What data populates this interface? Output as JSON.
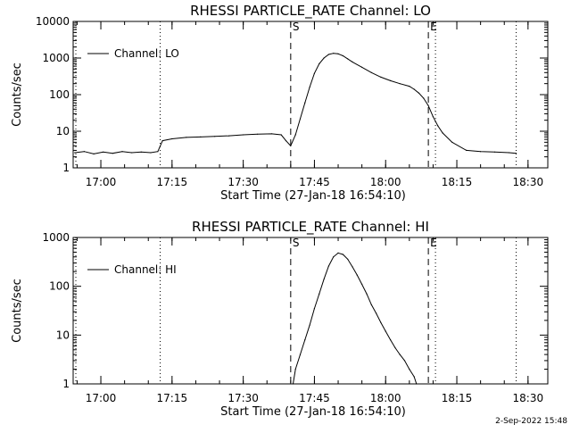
{
  "footer_date": "2-Sep-2022 15:48",
  "chart_data": [
    {
      "type": "line",
      "title": "RHESSI PARTICLE_RATE Channel: LO",
      "xlabel": "Start Time (27-Jan-18 16:54:10)",
      "ylabel": "Counts/sec",
      "y_scale": "log",
      "ylim": [
        1,
        10000
      ],
      "y_ticks": [
        1,
        10,
        100,
        1000,
        10000
      ],
      "y_tick_labels": [
        "1",
        "10",
        "100",
        "1000",
        "10000"
      ],
      "x_ticks": [
        "17:00",
        "17:15",
        "17:30",
        "17:45",
        "18:00",
        "18:15",
        "18:30"
      ],
      "xlim": [
        "16:54:10",
        "18:34:10"
      ],
      "legend": {
        "label": "Channel: LO",
        "placement": "top-left"
      },
      "start_marker": {
        "time": "17:40:00",
        "label": "S"
      },
      "end_marker": {
        "time": "18:09:00",
        "label": "E"
      },
      "dotted_lines": [
        "17:12:30",
        "18:10:30",
        "18:27:30"
      ],
      "series": [
        {
          "x": [
            "16:54:30",
            "16:56:30",
            "16:58:30",
            "17:00:30",
            "17:02:30",
            "17:04:30",
            "17:06:30",
            "17:08:30",
            "17:10:30",
            "17:12:00",
            "17:13:00",
            "17:15:00",
            "17:18:00",
            "17:21:00",
            "17:24:00",
            "17:27:00",
            "17:30:00",
            "17:33:00",
            "17:36:00",
            "17:38:00",
            "17:39:00",
            "17:40:00",
            "17:41:00",
            "17:42:00",
            "17:43:00",
            "17:44:00",
            "17:45:00",
            "17:46:00",
            "17:47:00",
            "17:48:00",
            "17:49:00",
            "17:50:00",
            "17:51:00",
            "17:52:00",
            "17:53:00",
            "17:55:00",
            "17:57:00",
            "17:59:00",
            "18:01:00",
            "18:03:00",
            "18:05:00",
            "18:06:00",
            "18:07:00",
            "18:08:00",
            "18:09:00",
            "18:10:00",
            "18:11:00",
            "18:12:00",
            "18:14:00",
            "18:17:00",
            "18:20:00",
            "18:23:00",
            "18:26:00",
            "18:27:30"
          ],
          "y": [
            2.6,
            2.8,
            2.4,
            2.7,
            2.5,
            2.8,
            2.6,
            2.7,
            2.6,
            2.8,
            5.5,
            6.2,
            6.8,
            7.0,
            7.2,
            7.5,
            8.0,
            8.3,
            8.5,
            8.0,
            5.5,
            4.0,
            8,
            22,
            60,
            160,
            380,
            700,
            1000,
            1250,
            1350,
            1300,
            1150,
            950,
            780,
            560,
            400,
            300,
            240,
            200,
            170,
            140,
            110,
            80,
            50,
            25,
            14,
            9,
            5,
            3,
            2.8,
            2.7,
            2.6,
            2.5
          ]
        }
      ]
    },
    {
      "type": "line",
      "title": "RHESSI PARTICLE_RATE Channel: HI",
      "xlabel": "Start Time (27-Jan-18 16:54:10)",
      "ylabel": "Counts/sec",
      "y_scale": "log",
      "ylim": [
        1,
        1000
      ],
      "y_ticks": [
        1,
        10,
        100,
        1000
      ],
      "y_tick_labels": [
        "1",
        "10",
        "100",
        "1000"
      ],
      "x_ticks": [
        "17:00",
        "17:15",
        "17:30",
        "17:45",
        "18:00",
        "18:15",
        "18:30"
      ],
      "xlim": [
        "16:54:10",
        "18:34:10"
      ],
      "legend": {
        "label": "Channel: HI",
        "placement": "top-left"
      },
      "start_marker": {
        "time": "17:40:00",
        "label": "S"
      },
      "end_marker": {
        "time": "18:09:00",
        "label": "E"
      },
      "dotted_lines": [
        "17:12:30",
        "18:10:30",
        "18:27:30"
      ],
      "series": [
        {
          "x": [
            "17:40:30",
            "17:41:00",
            "17:42:00",
            "17:43:00",
            "17:44:00",
            "17:45:00",
            "17:46:00",
            "17:47:00",
            "17:48:00",
            "17:49:00",
            "17:50:00",
            "17:51:00",
            "17:52:00",
            "17:53:00",
            "17:54:00",
            "17:55:00",
            "17:56:00",
            "17:57:00",
            "17:58:00",
            "17:59:00",
            "18:00:00",
            "18:01:00",
            "18:02:00",
            "18:03:00",
            "18:04:00",
            "18:05:00",
            "18:06:00",
            "18:06:30"
          ],
          "y": [
            1,
            2,
            4,
            8,
            16,
            35,
            70,
            140,
            260,
            400,
            480,
            450,
            360,
            250,
            170,
            110,
            70,
            42,
            28,
            18,
            12,
            8,
            5.5,
            4,
            3,
            2,
            1.4,
            1
          ]
        }
      ]
    }
  ]
}
